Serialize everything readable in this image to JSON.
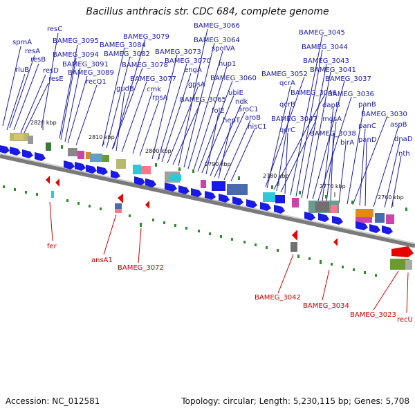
{
  "title": "Bacillus anthracis str. CDC 684, complete genome",
  "footer": {
    "accession": "Accession: NC_012581",
    "summary": "Topology: circular; Length: 5,230,115 bp; Genes: 5,708"
  },
  "colors": {
    "forward_gene": "#1a1ae6",
    "top_label": "#1a1aa6",
    "bottom_label": "#c80000",
    "reverse_gene": "#e60000",
    "tick": "#2e8b2e",
    "backbone": "#888888"
  },
  "scale_labels": [
    "2820 kbp",
    "2810 kbp",
    "2800 kbp",
    "2790 kbp",
    "2780 kbp",
    "2770 kbp",
    "2760 kbp"
  ],
  "top_labels": [
    "resC",
    "spmA",
    "resA",
    "resB",
    "rluB",
    "resD",
    "resE",
    "BAMEG_3095",
    "BAMEG_3094",
    "BAMEG_3091",
    "BAMEG_3089",
    "recQ1",
    "BAMEG_3079",
    "BAMEG_3084",
    "BAMEG_3082",
    "BAMEG_3078",
    "gudB",
    "BAMEG_3077",
    "cmk",
    "rpsA",
    "BAMEG_3073",
    "BAMEG_3070",
    "engA",
    "gpsA",
    "BAMEG_3065",
    "BAMEG_3066",
    "BAMEG_3064",
    "spoIVA",
    "hup1",
    "BAMEG_3060",
    "ubiE",
    "folE",
    "ndk",
    "aroC1",
    "hepT",
    "aroB",
    "hisC1",
    "BAMEG_3052",
    "qcrA",
    "BAMEG_3046",
    "qcrB",
    "BAMEG_3047",
    "qcrC",
    "BAMEG_3045",
    "BAMEG_3044",
    "BAMEG_3043",
    "BAMEG_3041",
    "BAMEG_3037",
    "BAMEG_3036",
    "dapB",
    "mgsA",
    "BAMEG_3038",
    "birA",
    "panB",
    "BAMEG_3030",
    "panC",
    "panD",
    "aspB",
    "dnaD",
    "nth"
  ],
  "bottom_labels": [
    "fer",
    "ansA1",
    "BAMEG_3072",
    "BAMEG_3042",
    "BAMEG_3034",
    "BAMEG_3023",
    "recU"
  ]
}
